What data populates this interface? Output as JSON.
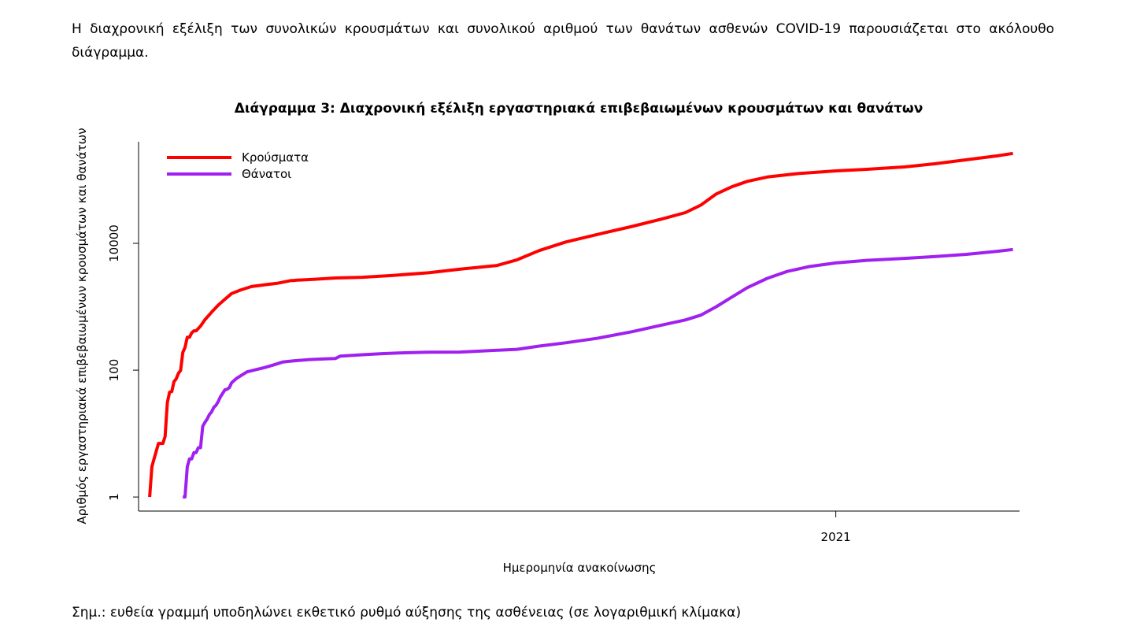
{
  "document": {
    "intro": "Η διαχρονική εξέλιξη των συνολικών κρουσμάτων και συνολικού αριθμού των θανάτων ασθενών COVID-19 παρουσιάζεται στο ακόλουθο διάγραμμα.",
    "note": "Σημ.: ευθεία γραμμή υποδηλώνει εκθετικό ρυθμό αύξησης της ασθένειας (σε λογαριθμική κλίμακα)"
  },
  "chart_data": {
    "type": "line",
    "title": "Διάγραμμα 3: Διαχρονική εξέλιξη εργαστηριακά επιβεβαιωμένων κρουσμάτων και θανάτων",
    "xlabel": "Ημερομηνία ανακοίνωσης",
    "ylabel": "Αριθμός εργαστηριακά επιβεβαιωμένων κρουσμάτων και θανάτων",
    "x_scale": "date",
    "xlim": [
      "2020-02-21",
      "2021-03-25"
    ],
    "x_ticks": [
      {
        "date": "2021-01-01",
        "label": "2021"
      }
    ],
    "y_scale": "log",
    "ylim": [
      0.6,
      400000
    ],
    "y_ticks": [
      1,
      100,
      10000
    ],
    "grid": false,
    "legend_position": "top-left",
    "series": [
      {
        "name": "Κρούσματα",
        "color": "#ff0000",
        "points": [
          [
            "2020-02-26",
            1
          ],
          [
            "2020-02-27",
            3
          ],
          [
            "2020-02-28",
            4
          ],
          [
            "2020-03-01",
            7
          ],
          [
            "2020-03-03",
            7
          ],
          [
            "2020-03-04",
            9
          ],
          [
            "2020-03-05",
            31
          ],
          [
            "2020-03-06",
            45
          ],
          [
            "2020-03-07",
            46
          ],
          [
            "2020-03-08",
            66
          ],
          [
            "2020-03-09",
            73
          ],
          [
            "2020-03-10",
            89
          ],
          [
            "2020-03-11",
            99
          ],
          [
            "2020-03-12",
            190
          ],
          [
            "2020-03-13",
            228
          ],
          [
            "2020-03-14",
            331
          ],
          [
            "2020-03-15",
            331
          ],
          [
            "2020-03-16",
            387
          ],
          [
            "2020-03-17",
            418
          ],
          [
            "2020-03-18",
            418
          ],
          [
            "2020-03-20",
            495
          ],
          [
            "2020-03-22",
            624
          ],
          [
            "2020-03-25",
            821
          ],
          [
            "2020-03-28",
            1061
          ],
          [
            "2020-03-31",
            1314
          ],
          [
            "2020-04-03",
            1613
          ],
          [
            "2020-04-07",
            1832
          ],
          [
            "2020-04-12",
            2081
          ],
          [
            "2020-04-18",
            2224
          ],
          [
            "2020-04-24",
            2351
          ],
          [
            "2020-04-30",
            2591
          ],
          [
            "2020-05-01",
            2591
          ],
          [
            "2020-05-02",
            2620
          ],
          [
            "2020-05-10",
            2710
          ],
          [
            "2020-05-20",
            2840
          ],
          [
            "2020-06-01",
            2918
          ],
          [
            "2020-06-15",
            3121
          ],
          [
            "2020-07-01",
            3432
          ],
          [
            "2020-07-15",
            3910
          ],
          [
            "2020-08-01",
            4477
          ],
          [
            "2020-08-10",
            5500
          ],
          [
            "2020-08-20",
            7700
          ],
          [
            "2020-09-01",
            10500
          ],
          [
            "2020-09-15",
            13730
          ],
          [
            "2020-10-01",
            18500
          ],
          [
            "2020-10-15",
            24500
          ],
          [
            "2020-10-25",
            30500
          ],
          [
            "2020-11-01",
            40000
          ],
          [
            "2020-11-08",
            60000
          ],
          [
            "2020-11-15",
            78000
          ],
          [
            "2020-11-22",
            95000
          ],
          [
            "2020-12-01",
            111000
          ],
          [
            "2020-12-15",
            126000
          ],
          [
            "2021-01-01",
            139000
          ],
          [
            "2021-01-15",
            147000
          ],
          [
            "2021-02-01",
            160000
          ],
          [
            "2021-02-15",
            180000
          ],
          [
            "2021-03-01",
            208000
          ],
          [
            "2021-03-15",
            240000
          ],
          [
            "2021-03-22",
            262000
          ]
        ]
      },
      {
        "name": "Θάνατοι",
        "color": "#a020f0",
        "points": [
          [
            "2020-03-12",
            1
          ],
          [
            "2020-03-13",
            1
          ],
          [
            "2020-03-14",
            3
          ],
          [
            "2020-03-15",
            4
          ],
          [
            "2020-03-16",
            4
          ],
          [
            "2020-03-17",
            5
          ],
          [
            "2020-03-18",
            5
          ],
          [
            "2020-03-19",
            6
          ],
          [
            "2020-03-20",
            6
          ],
          [
            "2020-03-21",
            13
          ],
          [
            "2020-03-22",
            15
          ],
          [
            "2020-03-23",
            17
          ],
          [
            "2020-03-24",
            20
          ],
          [
            "2020-03-25",
            22
          ],
          [
            "2020-03-26",
            26
          ],
          [
            "2020-03-27",
            28
          ],
          [
            "2020-03-28",
            32
          ],
          [
            "2020-03-29",
            38
          ],
          [
            "2020-03-30",
            43
          ],
          [
            "2020-03-31",
            49
          ],
          [
            "2020-04-01",
            50
          ],
          [
            "2020-04-02",
            53
          ],
          [
            "2020-04-03",
            63
          ],
          [
            "2020-04-05",
            73
          ],
          [
            "2020-04-07",
            81
          ],
          [
            "2020-04-10",
            94
          ],
          [
            "2020-04-14",
            102
          ],
          [
            "2020-04-18",
            110
          ],
          [
            "2020-04-22",
            121
          ],
          [
            "2020-04-26",
            134
          ],
          [
            "2020-05-01",
            140
          ],
          [
            "2020-05-08",
            147
          ],
          [
            "2020-05-15",
            151
          ],
          [
            "2020-05-20",
            153
          ],
          [
            "2020-05-22",
            166
          ],
          [
            "2020-06-01",
            175
          ],
          [
            "2020-06-10",
            182
          ],
          [
            "2020-06-20",
            188
          ],
          [
            "2020-07-01",
            192
          ],
          [
            "2020-07-15",
            193
          ],
          [
            "2020-07-25",
            201
          ],
          [
            "2020-08-01",
            206
          ],
          [
            "2020-08-10",
            213
          ],
          [
            "2020-08-20",
            240
          ],
          [
            "2020-09-01",
            270
          ],
          [
            "2020-09-15",
            317
          ],
          [
            "2020-10-01",
            405
          ],
          [
            "2020-10-15",
            520
          ],
          [
            "2020-10-25",
            620
          ],
          [
            "2020-11-01",
            738
          ],
          [
            "2020-11-08",
            1000
          ],
          [
            "2020-11-15",
            1419
          ],
          [
            "2020-11-22",
            2000
          ],
          [
            "2020-12-01",
            2800
          ],
          [
            "2020-12-10",
            3600
          ],
          [
            "2020-12-20",
            4300
          ],
          [
            "2021-01-01",
            4912
          ],
          [
            "2021-01-15",
            5400
          ],
          [
            "2021-02-01",
            5800
          ],
          [
            "2021-02-15",
            6200
          ],
          [
            "2021-03-01",
            6700
          ],
          [
            "2021-03-15",
            7500
          ],
          [
            "2021-03-22",
            8000
          ]
        ]
      }
    ]
  }
}
